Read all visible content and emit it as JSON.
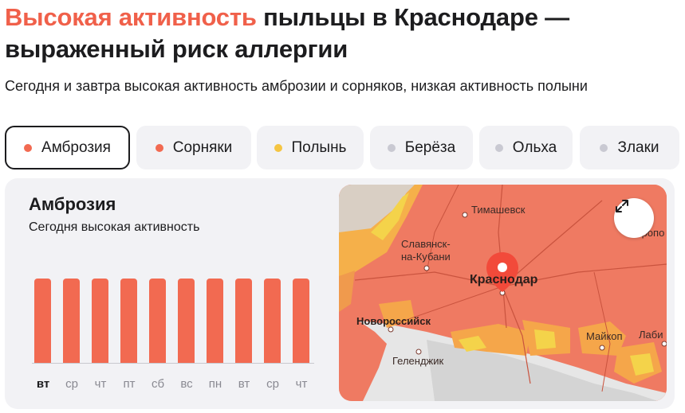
{
  "headline": {
    "accent": "Высокая активность",
    "rest": " пыльцы в Краснодаре — выраженный риск аллергии"
  },
  "subtitle": "Сегодня и завтра высокая активность амброзии и сорняков, низкая активность полыни",
  "colors": {
    "high": "#f26a51",
    "medium": "#f5c542",
    "none": "#c9c9d2"
  },
  "chips": [
    {
      "label": "Амброзия",
      "level": "high",
      "active": true
    },
    {
      "label": "Сорняки",
      "level": "high",
      "active": false
    },
    {
      "label": "Полынь",
      "level": "medium",
      "active": false
    },
    {
      "label": "Берёза",
      "level": "none",
      "active": false
    },
    {
      "label": "Ольха",
      "level": "none",
      "active": false
    },
    {
      "label": "Злаки",
      "level": "none",
      "active": false
    }
  ],
  "card": {
    "title": "Амброзия",
    "status": "Сегодня высокая активность"
  },
  "chart_data": {
    "type": "bar",
    "categories": [
      "вт",
      "ср",
      "чт",
      "пт",
      "сб",
      "вс",
      "пн",
      "вт",
      "ср",
      "чт"
    ],
    "values": [
      "high",
      "high",
      "high",
      "high",
      "high",
      "high",
      "high",
      "high",
      "high",
      "high"
    ],
    "today_index": 0
  },
  "map": {
    "labels": [
      {
        "text": "Тимашевск",
        "big": false
      },
      {
        "text": "Славянск-\nна-Кубани",
        "big": false
      },
      {
        "text": "Краснодар",
        "big": true
      },
      {
        "text": "Новороссийск",
        "big": true
      },
      {
        "text": "Геленджик",
        "big": false
      },
      {
        "text": "Майкоп",
        "big": false
      },
      {
        "text": "Кропоткин",
        "big": false
      },
      {
        "text": "Лаби",
        "big": false
      }
    ],
    "pin_icon": "location-pin-icon",
    "expand_icon": "expand-icon"
  }
}
